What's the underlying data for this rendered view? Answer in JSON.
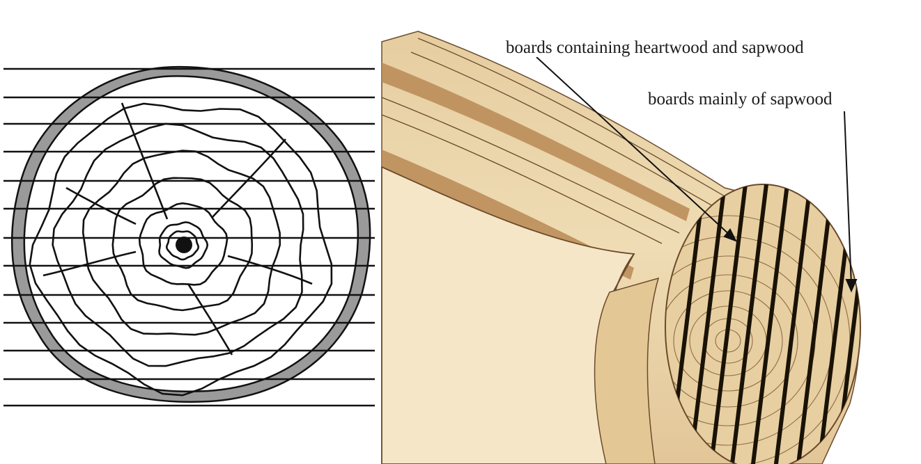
{
  "left_panel": {
    "kind": "log cross-section with horizontal saw cut lines"
  },
  "right_panel": {
    "kind": "log sawn into parallel boards",
    "annotations": [
      {
        "id": "heartwood-sapwood",
        "text": "boards containing heartwood and sapwood"
      },
      {
        "id": "sapwood",
        "text": "boards mainly of sapwood"
      }
    ]
  },
  "colors": {
    "bark": "#9a9a9a",
    "ink": "#111111",
    "wood_light": "#efdcb4",
    "wood_mid": "#dcbd8a",
    "wood_dark": "#b98a55",
    "background": "#ffffff"
  }
}
